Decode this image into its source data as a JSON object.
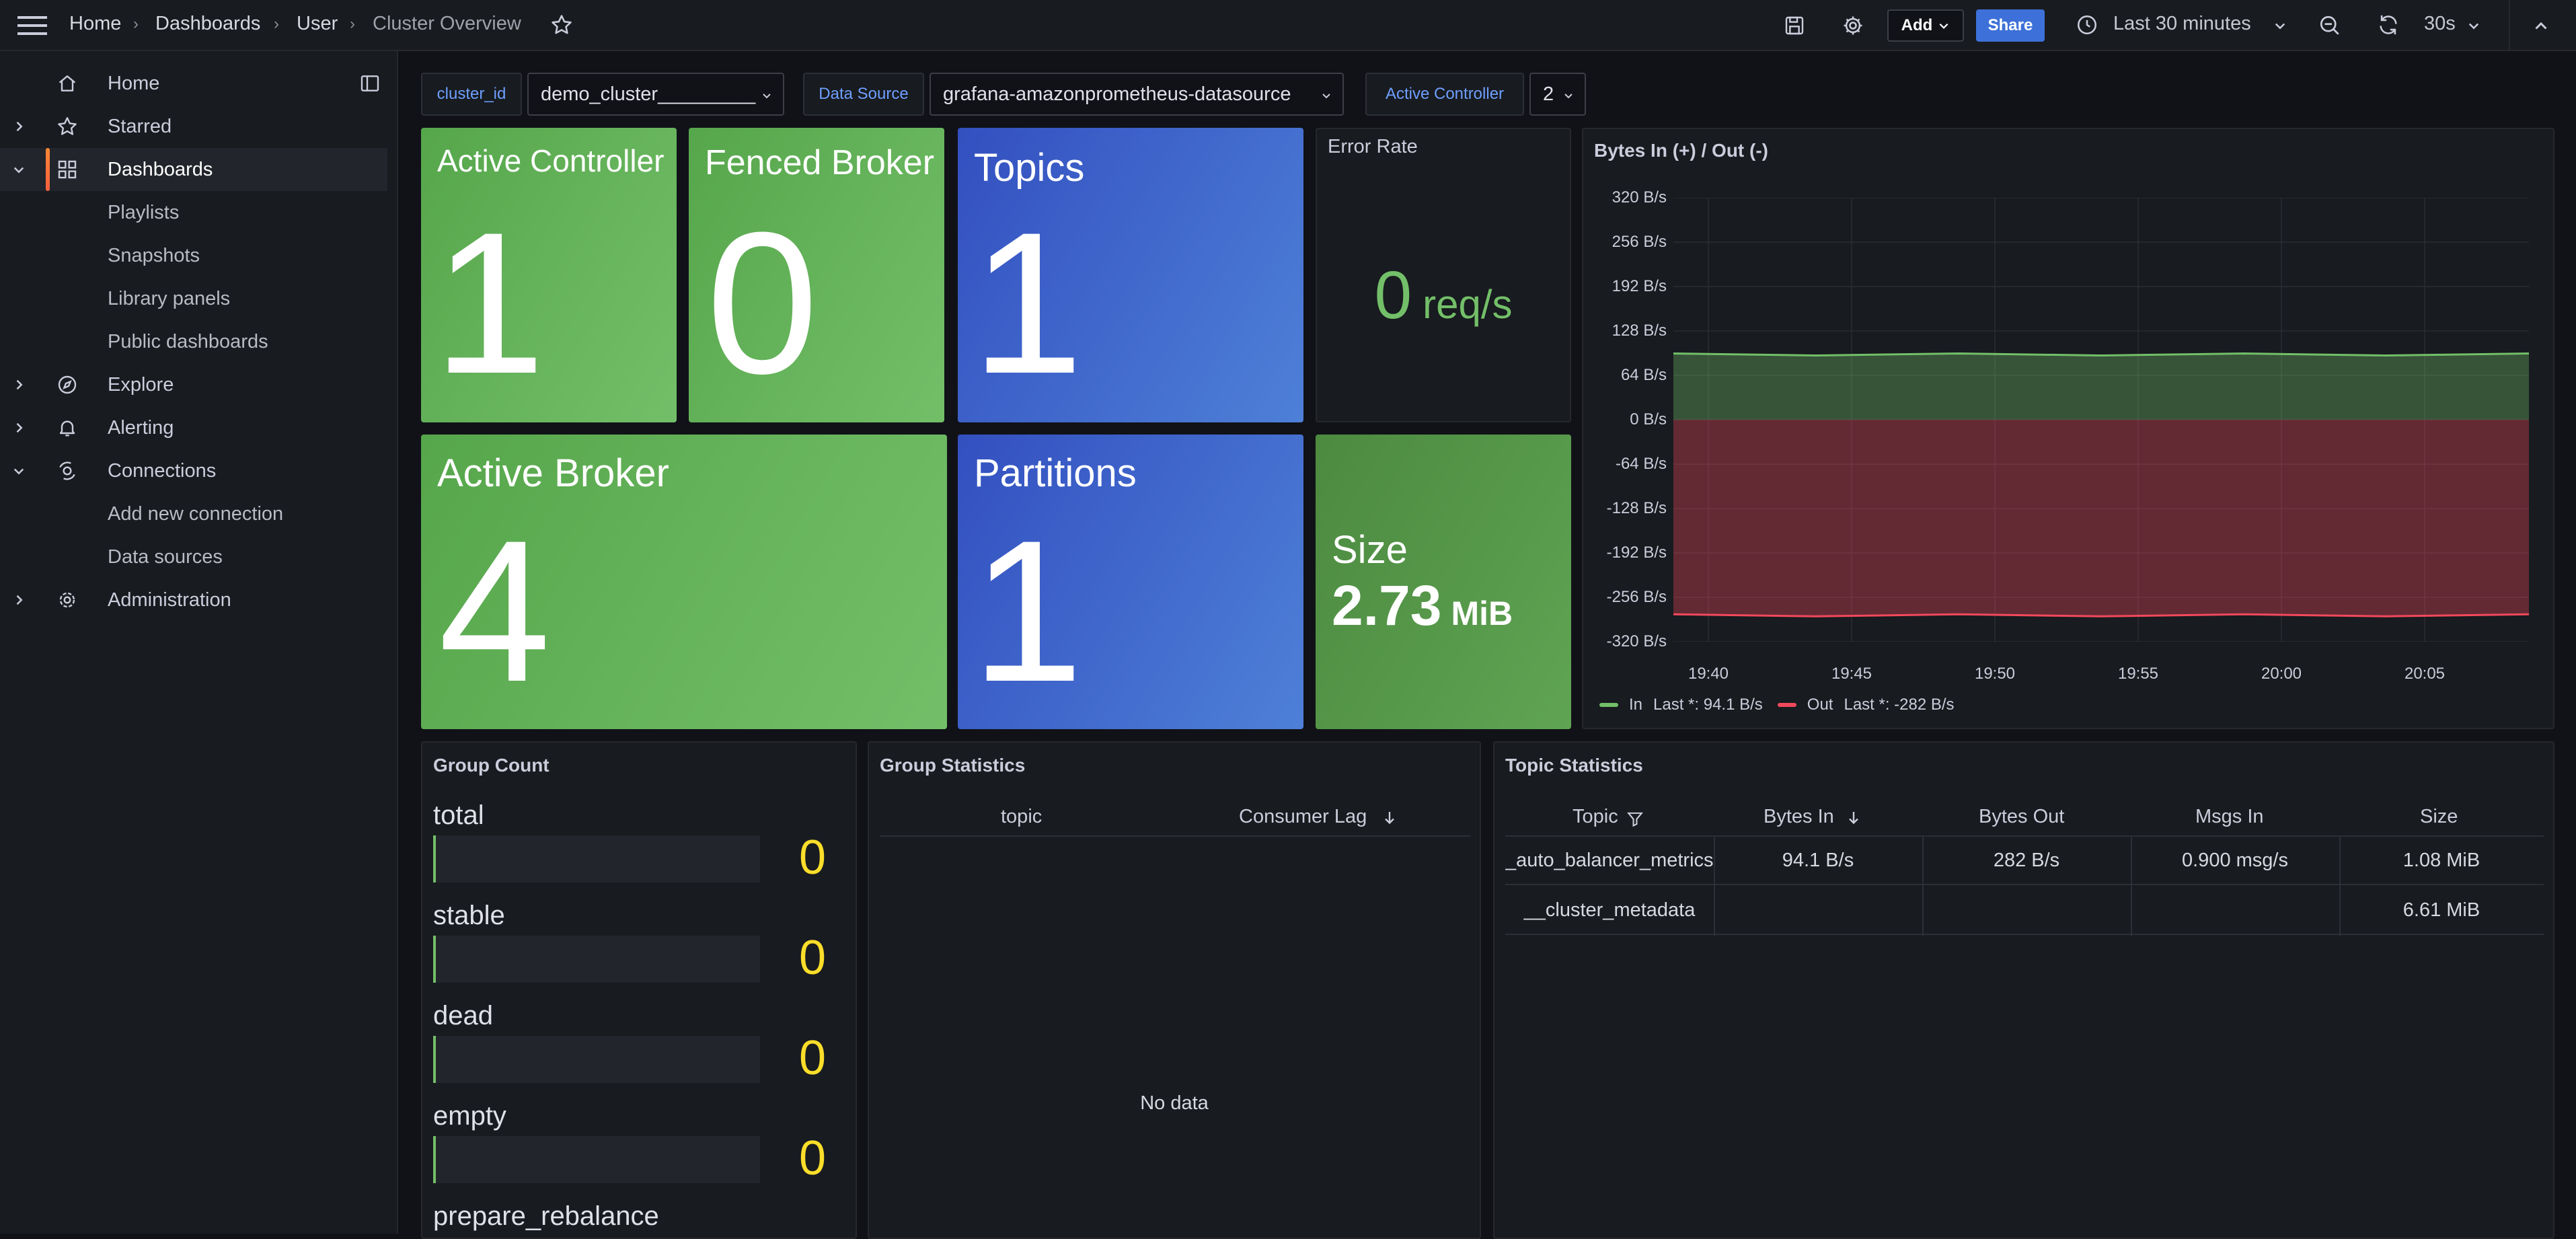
{
  "header": {
    "breadcrumbs": [
      "Home",
      "Dashboards",
      "User",
      "Cluster Overview"
    ],
    "add_label": "Add",
    "share_label": "Share",
    "time_range": "Last 30 minutes",
    "refresh_interval": "30s"
  },
  "sidebar": {
    "items": [
      {
        "label": "Home",
        "icon": "home-icon"
      },
      {
        "label": "Starred",
        "icon": "star-icon"
      },
      {
        "label": "Dashboards",
        "icon": "dashboards-icon"
      },
      {
        "label": "Playlists"
      },
      {
        "label": "Snapshots"
      },
      {
        "label": "Library panels"
      },
      {
        "label": "Public dashboards"
      },
      {
        "label": "Explore",
        "icon": "compass-icon"
      },
      {
        "label": "Alerting",
        "icon": "bell-icon"
      },
      {
        "label": "Connections",
        "icon": "connections-icon"
      },
      {
        "label": "Add new connection"
      },
      {
        "label": "Data sources"
      },
      {
        "label": "Administration",
        "icon": "cog-icon"
      }
    ]
  },
  "variables": {
    "cluster_id_label": "cluster_id",
    "cluster_id_value": "demo_cluster_________",
    "datasource_label": "Data Source",
    "datasource_value": "grafana-amazonprometheus-datasource",
    "active_controller_label": "Active Controller",
    "active_controller_value": "2"
  },
  "stats": {
    "active_controller": {
      "title": "Active Controller",
      "value": "1"
    },
    "fenced_broker": {
      "title": "Fenced Broker",
      "value": "0"
    },
    "topics": {
      "title": "Topics",
      "value": "1"
    },
    "error_rate": {
      "title": "Error Rate",
      "value": "0",
      "unit": "req/s"
    },
    "active_broker": {
      "title": "Active Broker",
      "value": "4"
    },
    "partitions": {
      "title": "Partitions",
      "value": "1"
    },
    "size": {
      "title": "Size",
      "value": "2.73",
      "unit": "MiB"
    }
  },
  "chart_data": {
    "type": "area",
    "title": "Bytes In (+) / Out (-)",
    "y_ticks": [
      "320 B/s",
      "256 B/s",
      "192 B/s",
      "128 B/s",
      "64 B/s",
      "0 B/s",
      "-64 B/s",
      "-128 B/s",
      "-192 B/s",
      "-256 B/s",
      "-320 B/s"
    ],
    "x_ticks": [
      "19:40",
      "19:45",
      "19:50",
      "19:55",
      "20:00",
      "20:05"
    ],
    "ylim": [
      -320,
      320
    ],
    "grid": true,
    "series": [
      {
        "name": "In",
        "color": "#73bf69",
        "values": [
          94.1,
          94.1,
          94.1,
          94.1,
          94.1,
          94.1,
          94.1
        ],
        "legend": "Last *: 94.1 B/s"
      },
      {
        "name": "Out",
        "color": "#f2495c",
        "values": [
          -282,
          -282,
          -282,
          -282,
          -282,
          -282,
          -282
        ],
        "legend": "Last *: -282 B/s"
      }
    ],
    "legend_position": "bottom-left"
  },
  "group_count": {
    "title": "Group Count",
    "rows": [
      {
        "label": "total",
        "value": "0"
      },
      {
        "label": "stable",
        "value": "0"
      },
      {
        "label": "dead",
        "value": "0"
      },
      {
        "label": "empty",
        "value": "0"
      },
      {
        "label": "prepare_rebalance",
        "value": ""
      }
    ]
  },
  "group_statistics": {
    "title": "Group Statistics",
    "columns": [
      "topic",
      "Consumer Lag"
    ],
    "empty_text": "No data"
  },
  "topic_statistics": {
    "title": "Topic Statistics",
    "columns": [
      "Topic",
      "Bytes In",
      "Bytes Out",
      "Msgs In",
      "Size"
    ],
    "rows": [
      [
        "_auto_balancer_metrics",
        "94.1 B/s",
        "282 B/s",
        "0.900 msg/s",
        "1.08 MiB"
      ],
      [
        "__cluster_metadata",
        "",
        "",
        "",
        "6.61 MiB"
      ]
    ]
  }
}
